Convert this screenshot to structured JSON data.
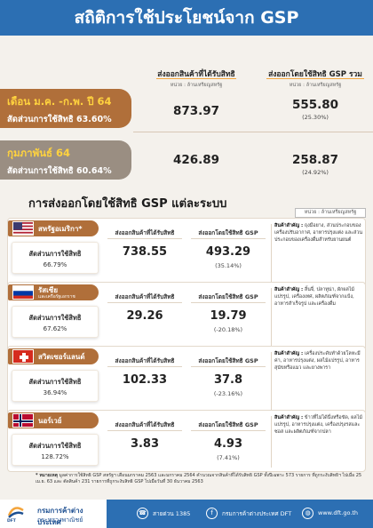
{
  "title": "สถิติการใช้ประโยชน์จาก GSP",
  "columns": {
    "exports": "ส่งออกสินค้าที่ได้รับสิทธิ",
    "gsp_total": "ส่งออกโดยใช้สิทธิ GSP รวม",
    "unit": "หน่วย : ล้านเหรียญสหรัฐ"
  },
  "summary": [
    {
      "period": "เดือน ม.ค. -ก.พ. ปี 64",
      "share": "สัดส่วนการใช้สิทธิ 63.60%",
      "exports": "873.97",
      "gsp": "555.80",
      "pct": "(25.30%)"
    },
    {
      "period": "กุมภาพันธ์ 64",
      "share": "สัดส่วนการใช้สิทธิ 60.64%",
      "exports": "426.89",
      "gsp": "258.87",
      "pct": "(24.92%)"
    }
  ],
  "section": {
    "title": "การส่งออกโดยใช้สิทธิ GSP แต่ละระบบ",
    "unit": "หน่วย : ล้านเหรียญสหรัฐ",
    "col_exports": "ส่งออกสินค้าที่ได้รับสิทธิ",
    "col_gsp": "ส่งออกโดยใช้สิทธิ GSP",
    "share_label": "สัดส่วนการใช้สิทธิ",
    "products_label": "สินค้าสำคัญ :"
  },
  "countries": [
    {
      "name": "สหรัฐอเมริกา*",
      "sub": "",
      "share": "66.79%",
      "exports": "738.55",
      "gsp": "493.29",
      "pct": "(35.14%)",
      "products": "ถุงมือยาง, ส่วนประกอบของเครื่องปรับอากาศ, อาหารปรุงแต่ง และส่วนประกอบของเครื่องดื่มสำหรับยานยนต์"
    },
    {
      "name": "รัสเซีย",
      "sub": "และเครือรัฐเอกราช",
      "share": "67.62%",
      "exports": "29.26",
      "gsp": "19.79",
      "pct": "(-20.18%)",
      "products": "ลิ้นจี่, ปลาทูน่า, ผักผลไม้แปรรูป, เครื่องเทศ, ผลิตภัณฑ์จากแป้ง, อาหารสำเร็จรูป และเครื่องดื่ม"
    },
    {
      "name": "สวิตเซอร์แลนด์",
      "sub": "",
      "share": "36.94%",
      "exports": "102.33",
      "gsp": "37.8",
      "pct": "(-23.16%)",
      "products": "เครื่องประดับทำด้วยโลหะมีค่า, อาหารปรุงแต่ง, ผลไม้แปรรูป, อาหารสุนัขหรือแมว และยางพารา"
    },
    {
      "name": "นอร์เวย์",
      "sub": "",
      "share": "128.72%",
      "exports": "3.83",
      "gsp": "4.93",
      "pct": "(7.41%)",
      "products": "ข้าวที่ไม่ได้นึ่งหรือขัด, ผลไม้แปรรูป, อาหารปรุงแต่ง, เครื่องปรุงรสและซอส และผลิตภัณฑ์จากปลา"
    }
  ],
  "note_label": "* หมายเหตุ",
  "note": "มูลค่าการใช้สิทธิ GSP สหรัฐฯ เดือนมกราคม 2563 และมกราคม 2564 คำนวณจากสินค้าที่ได้รับสิทธิ GSP ทั้งปีเฉพาะ 573 รายการ ที่ถูกระงับสิทธิฯ ไปเมื่อ 25 เม.ย. 63 และ ตัดสินค้า 231 รายการที่ถูกระงับสิทธิ GSP ไปเมื่อวันที่ 30 ธันวาคม 2563",
  "footer": {
    "org_th": "กรมการค้าต่างประเทศ",
    "ministry": "กระทรวงพาณิชย์",
    "org_short": "DFT",
    "hotline": "สายด่วน 1385",
    "facebook": "กรมการค้าต่างประเทศ DFT",
    "website": "www.dft.go.th"
  },
  "colors": {
    "brand_blue": "#2c6fb3",
    "accent_brown": "#b06f3a",
    "highlight_yellow": "#ffd23e"
  }
}
